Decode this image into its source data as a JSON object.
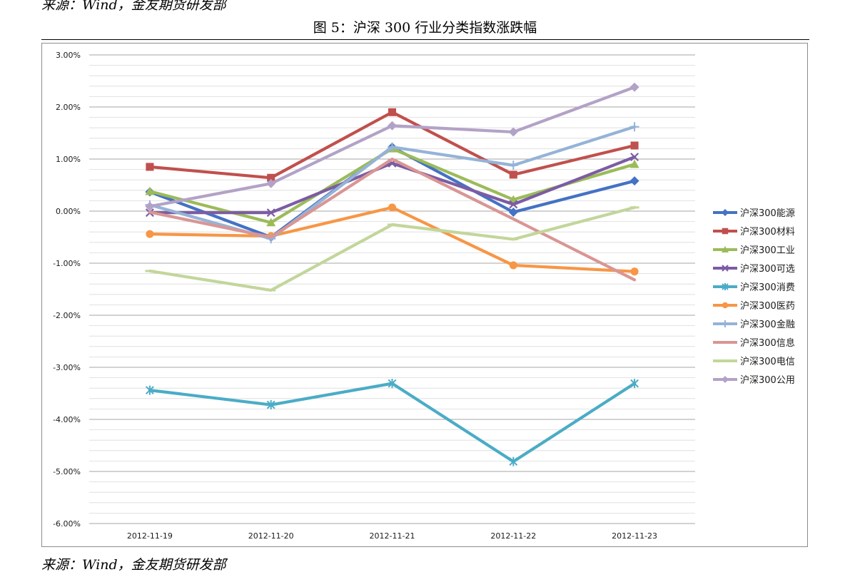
{
  "source_top": "来源：Wind，金友期货研发部",
  "figure_title": "图 5：沪深 300 行业分类指数涨跌幅",
  "source_bottom": "来源：Wind，金友期货研发部",
  "chart_data": {
    "type": "line",
    "title": "",
    "xlabel": "",
    "ylabel": "",
    "categories": [
      "2012-11-19",
      "2012-11-20",
      "2012-11-21",
      "2012-11-22",
      "2012-11-23"
    ],
    "ylim": [
      -0.06,
      0.03
    ],
    "yticks": [
      {
        "value": 0.03,
        "label": "3.00%"
      },
      {
        "value": 0.02,
        "label": "2.00%"
      },
      {
        "value": 0.01,
        "label": "1.00%"
      },
      {
        "value": 0.0,
        "label": "0.00%"
      },
      {
        "value": -0.01,
        "label": "-1.00%"
      },
      {
        "value": -0.02,
        "label": "-2.00%"
      },
      {
        "value": -0.03,
        "label": "-3.00%"
      },
      {
        "value": -0.04,
        "label": "-4.00%"
      },
      {
        "value": -0.05,
        "label": "-5.00%"
      },
      {
        "value": -0.06,
        "label": "-6.00%"
      }
    ],
    "grid": true,
    "legend_position": "right",
    "series": [
      {
        "name": "沪深300能源",
        "color": "#4472C4",
        "marker": "diamond",
        "values": [
          0.0037,
          -0.005,
          0.0123,
          -0.0002,
          0.0058
        ]
      },
      {
        "name": "沪深300材料",
        "color": "#C0504D",
        "marker": "square",
        "values": [
          0.0085,
          0.0064,
          0.019,
          0.007,
          0.0126
        ]
      },
      {
        "name": "沪深300工业",
        "color": "#9BBB59",
        "marker": "triangle",
        "values": [
          0.0038,
          -0.0022,
          0.012,
          0.0022,
          0.009
        ]
      },
      {
        "name": "沪深300可选",
        "color": "#7C5CA3",
        "marker": "x",
        "values": [
          -0.0003,
          -0.0003,
          0.0092,
          0.0013,
          0.0104
        ]
      },
      {
        "name": "沪深300消费",
        "color": "#4BACC6",
        "marker": "star",
        "values": [
          -0.0344,
          -0.0372,
          -0.0331,
          -0.0481,
          -0.0331
        ]
      },
      {
        "name": "沪深300医药",
        "color": "#F79646",
        "marker": "circle",
        "values": [
          -0.0044,
          -0.0048,
          0.0007,
          -0.0104,
          -0.0116
        ]
      },
      {
        "name": "沪深300金融",
        "color": "#95B3D7",
        "marker": "plus",
        "values": [
          0.0012,
          -0.0053,
          0.0123,
          0.0088,
          0.0162
        ]
      },
      {
        "name": "沪深300信息",
        "color": "#D99694",
        "marker": "none",
        "values": [
          -0.0002,
          -0.005,
          0.01,
          -0.0015,
          -0.0132
        ]
      },
      {
        "name": "沪深300电信",
        "color": "#C3D69B",
        "marker": "dash",
        "values": [
          -0.0115,
          -0.0152,
          -0.0026,
          -0.0054,
          0.0007
        ]
      },
      {
        "name": "沪深300公用",
        "color": "#B3A2C7",
        "marker": "diamond",
        "values": [
          0.0009,
          0.0053,
          0.0164,
          0.0152,
          0.0238
        ]
      }
    ]
  }
}
